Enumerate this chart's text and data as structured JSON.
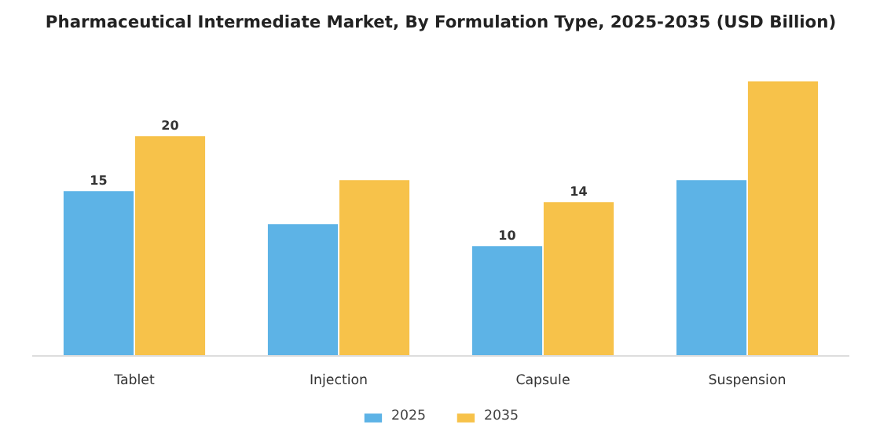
{
  "chart_data": {
    "type": "bar",
    "title": "Pharmaceutical Intermediate Market, By Formulation Type, 2025-2035 (USD Billion)",
    "categories": [
      "Tablet",
      "Injection",
      "Capsule",
      "Suspension"
    ],
    "series": [
      {
        "name": "2025",
        "color": "#5db3e6",
        "values": [
          15,
          12,
          10,
          16
        ],
        "value_labels": [
          "15",
          null,
          "10",
          null
        ]
      },
      {
        "name": "2035",
        "color": "#f7c24a",
        "values": [
          20,
          16,
          14,
          25
        ],
        "value_labels": [
          "20",
          null,
          "14",
          null
        ]
      }
    ],
    "legend": "bottom",
    "tick_labels": "x"
  }
}
